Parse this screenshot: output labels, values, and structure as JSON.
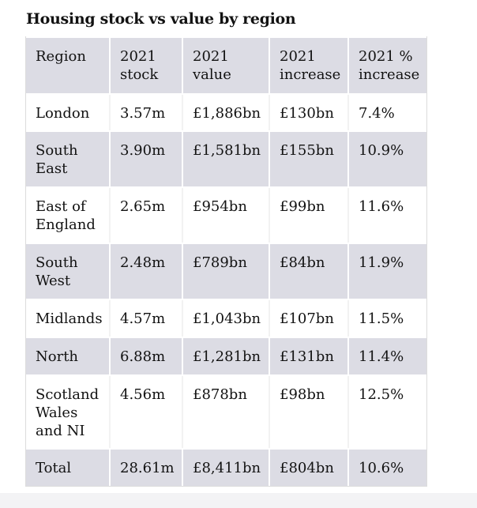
{
  "title": "Housing stock vs value by region",
  "header": [
    "Region",
    "2021\nstock",
    "2021\nvalue",
    "2021\nincrease",
    "2021 %\nincrease"
  ],
  "rows": [
    [
      "London",
      "3.57m",
      "£1,886bn",
      "£130bn",
      "7.4%"
    ],
    [
      "South\nEast",
      "3.90m",
      "£1,581bn",
      "£155bn",
      "10.9%"
    ],
    [
      "East of\nEngland",
      "2.65m",
      "£954bn",
      "£99bn",
      "11.6%"
    ],
    [
      "South\nWest",
      "2.48m",
      "£789bn",
      "£84bn",
      "11.9%"
    ],
    [
      "Midlands",
      "4.57m",
      "£1,043bn",
      "£107bn",
      "11.5%"
    ],
    [
      "North",
      "6.88m",
      "£1,281bn",
      "£131bn",
      "11.4%"
    ],
    [
      "Scotland\nWales\nand NI",
      "4.56m",
      "£878bn",
      "£98bn",
      "12.5%"
    ],
    [
      "Total",
      "28.61m",
      "£8,411bn",
      "£804bn",
      "10.6%"
    ]
  ],
  "colors": {
    "shaded": "#dcdce4",
    "plain": "#ffffff"
  }
}
